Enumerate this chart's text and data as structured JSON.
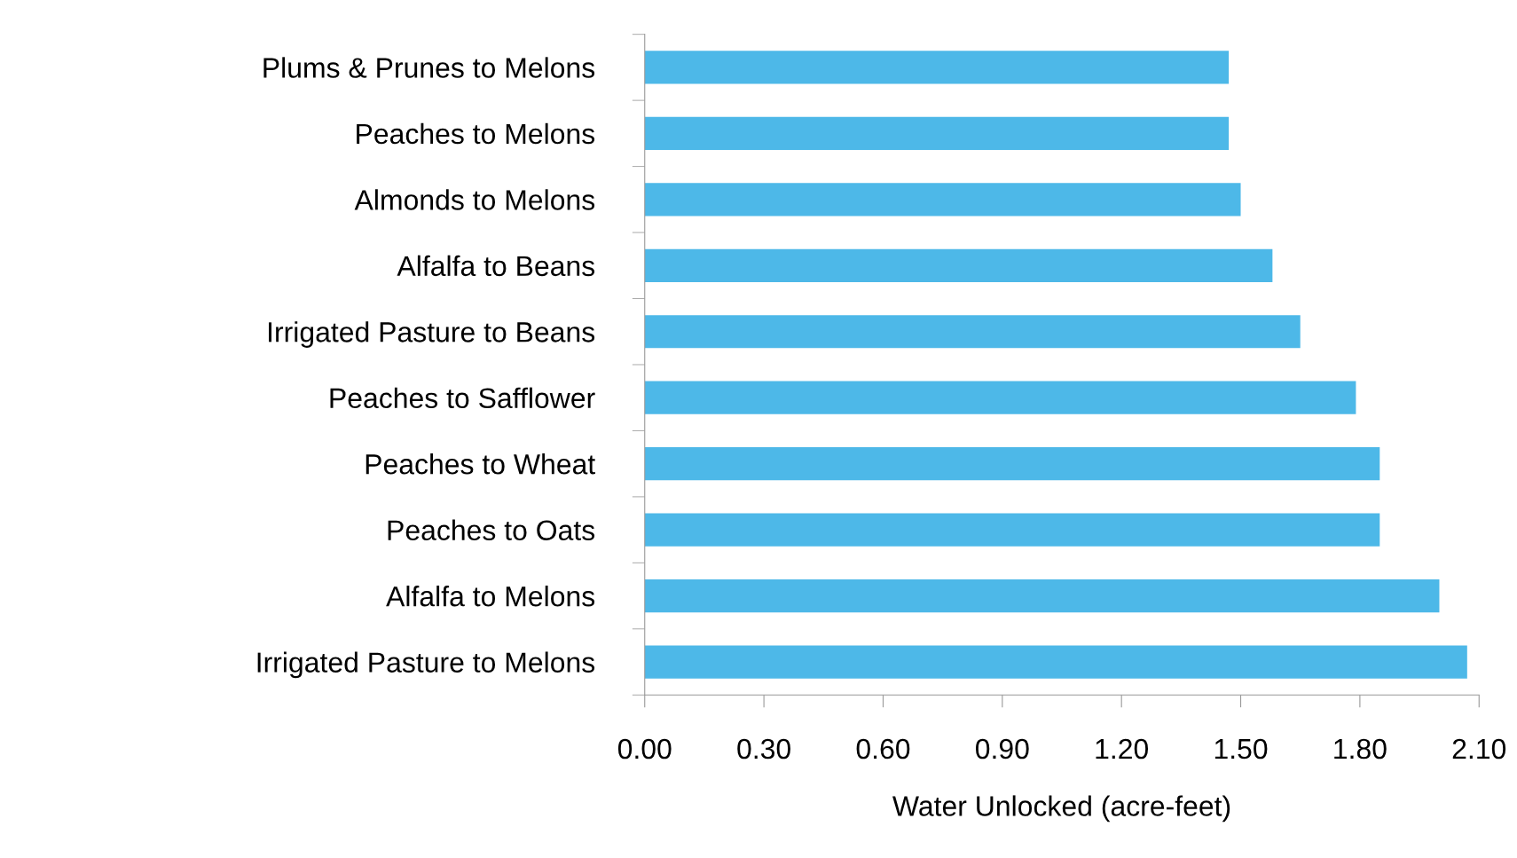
{
  "chart_data": {
    "type": "bar",
    "orientation": "horizontal",
    "xlabel": "Water Unlocked (acre-feet)",
    "categories": [
      "Plums & Prunes to Melons",
      "Peaches to Melons",
      "Almonds to Melons",
      "Alfalfa to Beans",
      "Irrigated Pasture to Beans",
      "Peaches to Safflower",
      "Peaches to Wheat",
      "Peaches to Oats",
      "Alfalfa to Melons",
      "Irrigated Pasture to Melons"
    ],
    "values": [
      1.47,
      1.47,
      1.5,
      1.58,
      1.65,
      1.79,
      1.85,
      1.85,
      2.0,
      2.07
    ],
    "color": "#4db8e8",
    "xlim": [
      0,
      2.1
    ],
    "xticks": [
      {
        "value": 0,
        "label": "0.00"
      },
      {
        "value": 0.3,
        "label": "0.30"
      },
      {
        "value": 0.6,
        "label": "0.60"
      },
      {
        "value": 0.9,
        "label": "0.90"
      },
      {
        "value": 1.2,
        "label": "1.20"
      },
      {
        "value": 1.5,
        "label": "1.50"
      },
      {
        "value": 1.8,
        "label": "1.80"
      },
      {
        "value": 2.1,
        "label": "2.10"
      }
    ],
    "grid": false,
    "legend": false
  }
}
